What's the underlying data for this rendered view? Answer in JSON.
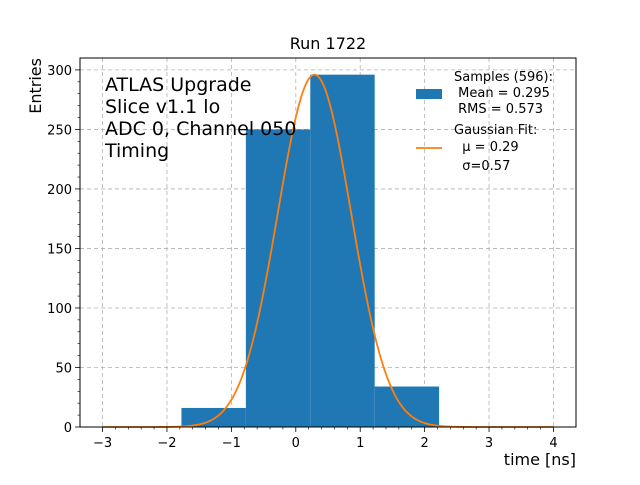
{
  "chart_data": {
    "type": "bar",
    "title": "Run 1722",
    "xlabel": "time [ns]",
    "ylabel": "Entries",
    "xlim": [
      -3.35,
      4.35
    ],
    "ylim": [
      0,
      310
    ],
    "xticks": [
      -3,
      -2,
      -1,
      0,
      1,
      2,
      3,
      4
    ],
    "xtick_labels": [
      "−3",
      "−2",
      "−1",
      "0",
      "1",
      "2",
      "3",
      "4"
    ],
    "yticks": [
      0,
      50,
      100,
      150,
      200,
      250,
      300
    ],
    "ytick_labels": [
      "0",
      "50",
      "100",
      "150",
      "200",
      "250",
      "300"
    ],
    "grid": true,
    "legend_position": "top-right",
    "series": [
      {
        "kind": "histogram",
        "color": "#1f77b4",
        "legend": [
          "Samples (596):",
          " Mean = 0.295",
          " RMS = 0.573"
        ],
        "bins": [
          {
            "x0": -1.775,
            "x1": -0.775,
            "count": 16
          },
          {
            "x0": -0.775,
            "x1": 0.225,
            "count": 250
          },
          {
            "x0": 0.225,
            "x1": 1.225,
            "count": 296
          },
          {
            "x0": 1.225,
            "x1": 2.225,
            "count": 34
          }
        ]
      },
      {
        "kind": "gaussian-fit",
        "color": "#ff7f0e",
        "legend": [
          "Gaussian Fit:",
          "  μ = 0.29",
          "  σ=0.57"
        ],
        "mu": 0.29,
        "sigma": 0.57,
        "amplitude": 296,
        "x_range": [
          -3,
          4
        ]
      }
    ],
    "annotation": [
      "ATLAS Upgrade",
      "Slice v1.1 lo",
      "ADC 0, Channel 050",
      "Timing"
    ]
  }
}
